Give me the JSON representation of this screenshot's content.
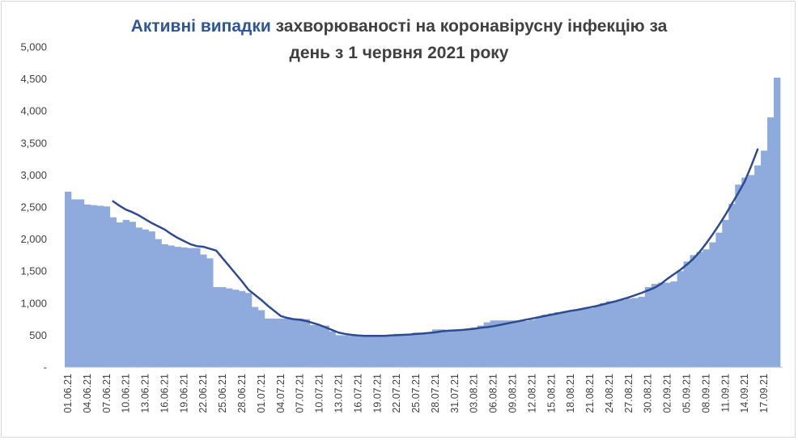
{
  "chart_data": {
    "type": "bar",
    "title_highlight": "Активні випадки",
    "title_rest_line1": "захворюваності на коронавірусну інфекцію за",
    "title_line2": "день з 1 червня 2021 року",
    "xlabel": "",
    "ylabel": "",
    "ylim": [
      0,
      5000
    ],
    "yticks": [
      "-",
      "500",
      "1,000",
      "1,500",
      "2,000",
      "2,500",
      "3,000",
      "3,500",
      "4,000",
      "4,500",
      "5,000"
    ],
    "grid": false,
    "legend": "none",
    "colors": {
      "bar": "#8faadc",
      "trend": "#2f4b8f",
      "highlight": "#2f5597",
      "text": "#404040"
    },
    "x_tick_labels": [
      "01.06.21",
      "04.06.21",
      "07.06.21",
      "10.06.21",
      "13.06.21",
      "16.06.21",
      "19.06.21",
      "22.06.21",
      "25.06.21",
      "28.06.21",
      "01.07.21",
      "04.07.21",
      "07.07.21",
      "10.07.21",
      "13.07.21",
      "16.07.21",
      "19.07.21",
      "22.07.21",
      "25.07.21",
      "28.07.21",
      "31.07.21",
      "03.08.21",
      "06.08.21",
      "09.08.21",
      "12.08.21",
      "15.08.21",
      "18.08.21",
      "21.08.21",
      "24.08.21",
      "27.08.21",
      "30.08.21",
      "02.09.21",
      "05.09.21",
      "08.09.21",
      "11.09.21",
      "14.09.21",
      "17.09.21"
    ],
    "series": [
      {
        "kind": "bar",
        "values": [
          2740,
          2620,
          2620,
          2540,
          2530,
          2520,
          2510,
          2340,
          2260,
          2300,
          2270,
          2180,
          2150,
          2120,
          2000,
          1920,
          1900,
          1880,
          1870,
          1860,
          1860,
          1760,
          1700,
          1250,
          1250,
          1230,
          1210,
          1190,
          1160,
          940,
          890,
          760,
          760,
          760,
          760,
          760,
          760,
          750,
          660,
          660,
          650,
          560,
          500,
          500,
          490,
          490,
          490,
          500,
          500,
          500,
          500,
          520,
          520,
          520,
          540,
          540,
          540,
          590,
          590,
          570,
          570,
          580,
          600,
          620,
          650,
          700,
          730,
          730,
          730,
          730,
          720,
          720,
          740,
          780,
          820,
          840,
          860,
          860,
          880,
          900,
          920,
          920,
          950,
          1000,
          1030,
          1040,
          1050,
          1070,
          1080,
          1100,
          1250,
          1300,
          1320,
          1320,
          1340,
          1500,
          1650,
          1750,
          1800,
          1840,
          1950,
          2100,
          2300,
          2550,
          2850,
          2960,
          3000,
          3150,
          3380,
          3900,
          4520
        ]
      },
      {
        "kind": "line",
        "name": "trend",
        "start_index": 7,
        "values": [
          2590,
          2520,
          2460,
          2420,
          2370,
          2310,
          2250,
          2200,
          2150,
          2080,
          2020,
          1970,
          1920,
          1890,
          1880,
          1850,
          1820,
          1700,
          1580,
          1460,
          1340,
          1210,
          1130,
          1050,
          960,
          880,
          800,
          770,
          750,
          740,
          720,
          690,
          660,
          620,
          580,
          540,
          520,
          505,
          495,
          490,
          490,
          490,
          490,
          495,
          500,
          505,
          510,
          520,
          525,
          535,
          545,
          560,
          570,
          575,
          580,
          590,
          600,
          615,
          625,
          640,
          660,
          680,
          700,
          720,
          740,
          760,
          780,
          800,
          820,
          840,
          860,
          880,
          895,
          915,
          935,
          955,
          980,
          1005,
          1030,
          1060,
          1090,
          1125,
          1160,
          1200,
          1240,
          1300,
          1380,
          1450,
          1520,
          1600,
          1690,
          1800,
          1930,
          2070,
          2220,
          2380,
          2550,
          2720,
          2900,
          3140,
          3400
        ]
      }
    ]
  }
}
